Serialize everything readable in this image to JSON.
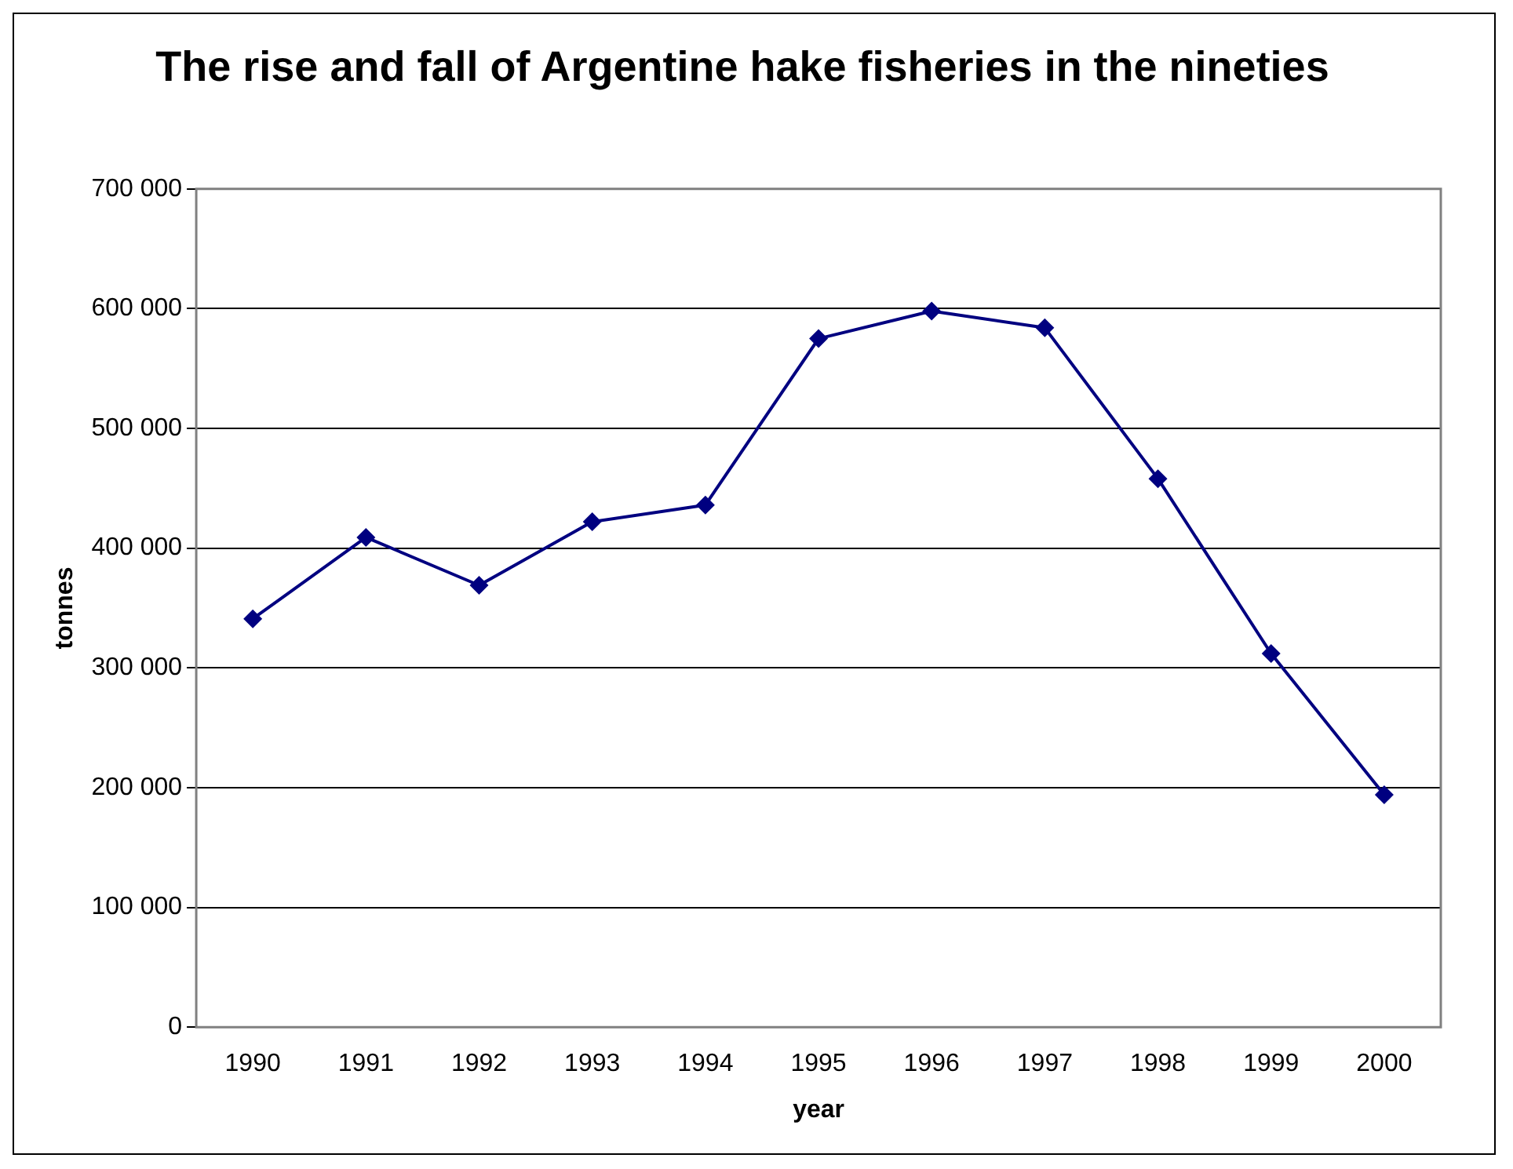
{
  "chart_data": {
    "type": "line",
    "title": "The rise and fall of Argentine hake fisheries in the nineties",
    "xlabel": "year",
    "ylabel": "tonnes",
    "categories": [
      "1990",
      "1991",
      "1992",
      "1993",
      "1994",
      "1995",
      "1996",
      "1997",
      "1998",
      "1999",
      "2000"
    ],
    "series": [
      {
        "color": "#000080",
        "values": [
          341000,
          409000,
          369000,
          422000,
          436000,
          575000,
          598000,
          584000,
          458000,
          312000,
          194000
        ]
      }
    ],
    "ylim": [
      0,
      700000
    ],
    "yticks": [
      {
        "value": 0,
        "label": "0"
      },
      {
        "value": 100000,
        "label": "100 000"
      },
      {
        "value": 200000,
        "label": "200 000"
      },
      {
        "value": 300000,
        "label": "300 000"
      },
      {
        "value": 400000,
        "label": "400 000"
      },
      {
        "value": 500000,
        "label": "500 000"
      },
      {
        "value": 600000,
        "label": "600 000"
      },
      {
        "value": 700000,
        "label": "700 000"
      }
    ],
    "grid": "y",
    "legend": false,
    "marker": "diamond",
    "line_style": "solid"
  }
}
